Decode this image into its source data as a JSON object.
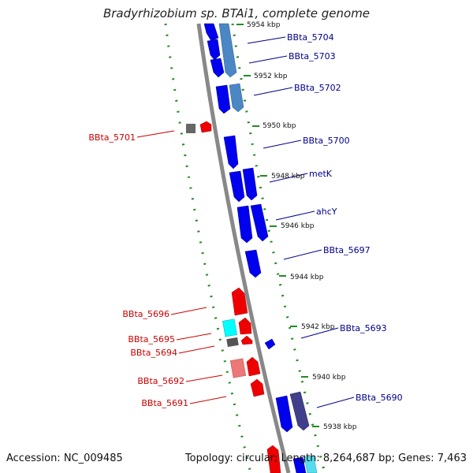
{
  "title": "Bradyrhizobium sp. BTAi1, complete genome",
  "footer": {
    "accession": "Accession: NC_009485",
    "summary": "Topology: circular; Length: 8,264,687 bp; Genes: 7,463"
  },
  "ticks": [
    "5954 kbp",
    "5952 kbp",
    "5950 kbp",
    "5948 kbp",
    "5946 kbp",
    "5944 kbp",
    "5942 kbp",
    "5940 kbp",
    "5938 kbp"
  ],
  "genes_forward": [
    "BBta_5704",
    "BBta_5703",
    "BBta_5702",
    "BBta_5700",
    "metK",
    "ahcY",
    "BBta_5697",
    "BBta_5693",
    "BBta_5690"
  ],
  "genes_reverse": [
    "BBta_5701",
    "BBta_5696",
    "BBta_5695",
    "BBta_5694",
    "BBta_5692",
    "BBta_5691"
  ],
  "colors": {
    "forward": "#0000ee",
    "forward_label": "#00008b",
    "reverse": "#ee0000",
    "reverse_label": "#cc0000",
    "backbone": "#888888",
    "dotted_ring": "#228b22"
  }
}
